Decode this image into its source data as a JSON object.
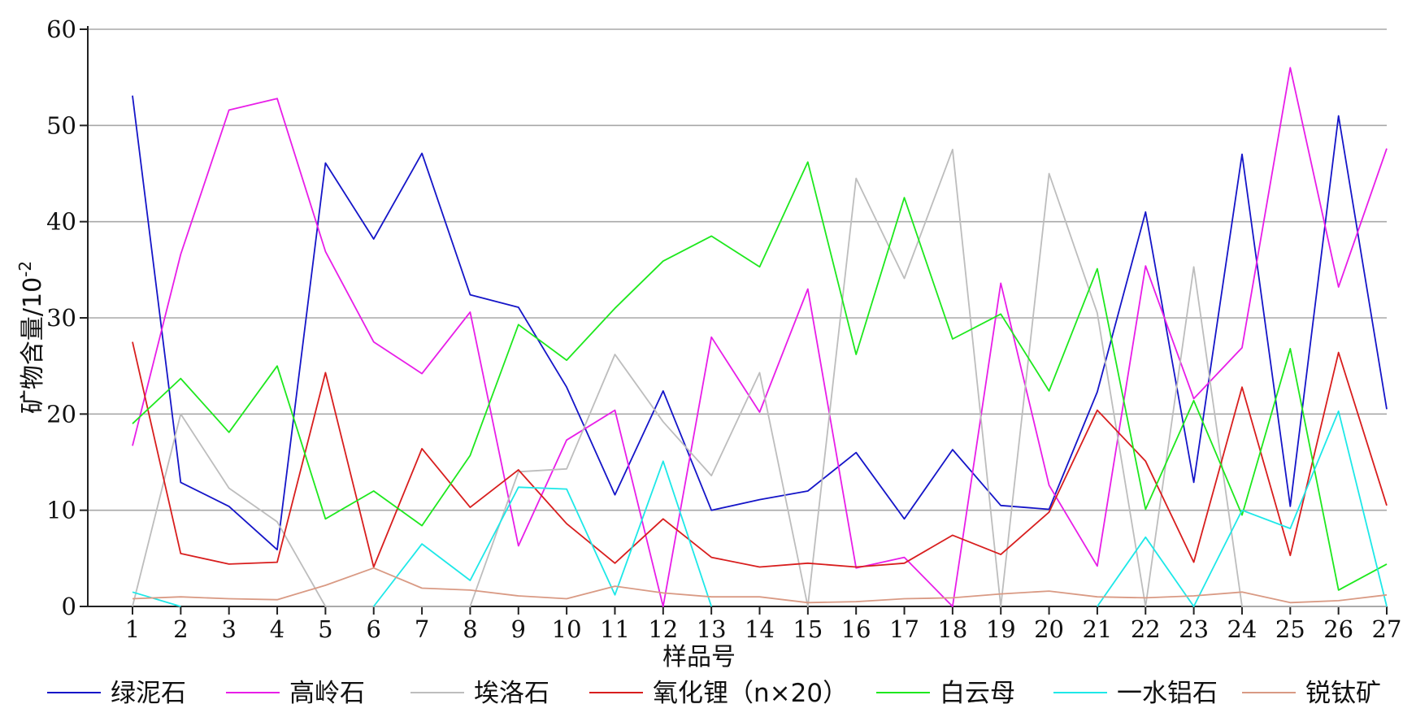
{
  "chart_data": {
    "type": "line",
    "xlabel": "样品号",
    "ylabel": "矿物含量/10",
    "ylabel_exponent": "-2",
    "ylim": [
      0,
      60
    ],
    "yticks": [
      0,
      10,
      20,
      30,
      40,
      50,
      60
    ],
    "x": [
      1,
      2,
      3,
      4,
      5,
      6,
      7,
      8,
      9,
      10,
      11,
      12,
      13,
      14,
      15,
      16,
      17,
      18,
      19,
      20,
      21,
      22,
      23,
      24,
      25,
      26,
      27
    ],
    "grid": "horizontal",
    "legend_position": "bottom",
    "series": [
      {
        "name": "绿泥石",
        "color": "#1515c8",
        "values": [
          53.1,
          12.9,
          10.4,
          5.9,
          46.1,
          38.2,
          47.1,
          32.4,
          31.1,
          22.8,
          11.6,
          22.4,
          10.0,
          11.1,
          12.0,
          16.0,
          9.1,
          16.3,
          10.5,
          10.1,
          22.3,
          41.0,
          12.9,
          47.0,
          10.4,
          51.0,
          20.5
        ]
      },
      {
        "name": "高岭石",
        "color": "#e81ee8",
        "values": [
          16.7,
          36.6,
          51.6,
          52.8,
          36.9,
          27.5,
          24.2,
          30.6,
          6.3,
          17.3,
          20.4,
          0.0,
          28.0,
          20.2,
          33.0,
          4.0,
          5.1,
          0.0,
          33.6,
          12.6,
          4.2,
          35.4,
          21.6,
          26.9,
          56.0,
          33.2,
          47.6
        ]
      },
      {
        "name": "埃洛石",
        "color": "#bdbdbd",
        "values": [
          0.0,
          20.0,
          12.3,
          8.8,
          0.0,
          0.0,
          0.0,
          0.0,
          14.0,
          14.3,
          26.2,
          19.2,
          13.6,
          24.3,
          0.0,
          44.5,
          34.1,
          47.5,
          0.0,
          45.0,
          30.5,
          0.0,
          35.3,
          0.0,
          0.0,
          0.0,
          0.0
        ]
      },
      {
        "name": "氧化锂（n×20）",
        "color": "#d81e1e",
        "values": [
          27.5,
          5.5,
          4.4,
          4.6,
          24.3,
          4.1,
          16.4,
          10.3,
          14.2,
          8.6,
          4.5,
          9.1,
          5.1,
          4.1,
          4.5,
          4.1,
          4.5,
          7.4,
          5.4,
          9.8,
          20.4,
          15.1,
          4.6,
          22.8,
          5.3,
          26.4,
          10.5
        ]
      },
      {
        "name": "白云母",
        "color": "#1ee81e",
        "values": [
          19.0,
          23.7,
          18.1,
          25.0,
          9.1,
          12.0,
          8.4,
          15.7,
          29.3,
          25.6,
          31.0,
          35.9,
          38.5,
          35.3,
          46.2,
          26.2,
          42.5,
          27.8,
          30.4,
          22.4,
          35.1,
          10.1,
          21.4,
          9.5,
          26.8,
          1.7,
          4.4
        ]
      },
      {
        "name": "一水铝石",
        "color": "#1ee8e8",
        "values": [
          1.5,
          0.0,
          null,
          null,
          null,
          0.0,
          6.5,
          2.7,
          12.4,
          12.2,
          1.2,
          15.1,
          0.0,
          null,
          null,
          null,
          null,
          null,
          null,
          null,
          0.0,
          7.2,
          0.0,
          10.0,
          8.1,
          20.3,
          0.0
        ]
      },
      {
        "name": "锐钛矿",
        "color": "#d99a84",
        "values": [
          0.8,
          1.0,
          0.8,
          0.7,
          2.2,
          4.0,
          1.9,
          1.7,
          1.1,
          0.8,
          2.1,
          1.4,
          1.0,
          1.0,
          0.4,
          0.5,
          0.8,
          0.9,
          1.3,
          1.6,
          1.0,
          0.9,
          1.1,
          1.5,
          0.4,
          0.6,
          1.2
        ]
      }
    ]
  }
}
